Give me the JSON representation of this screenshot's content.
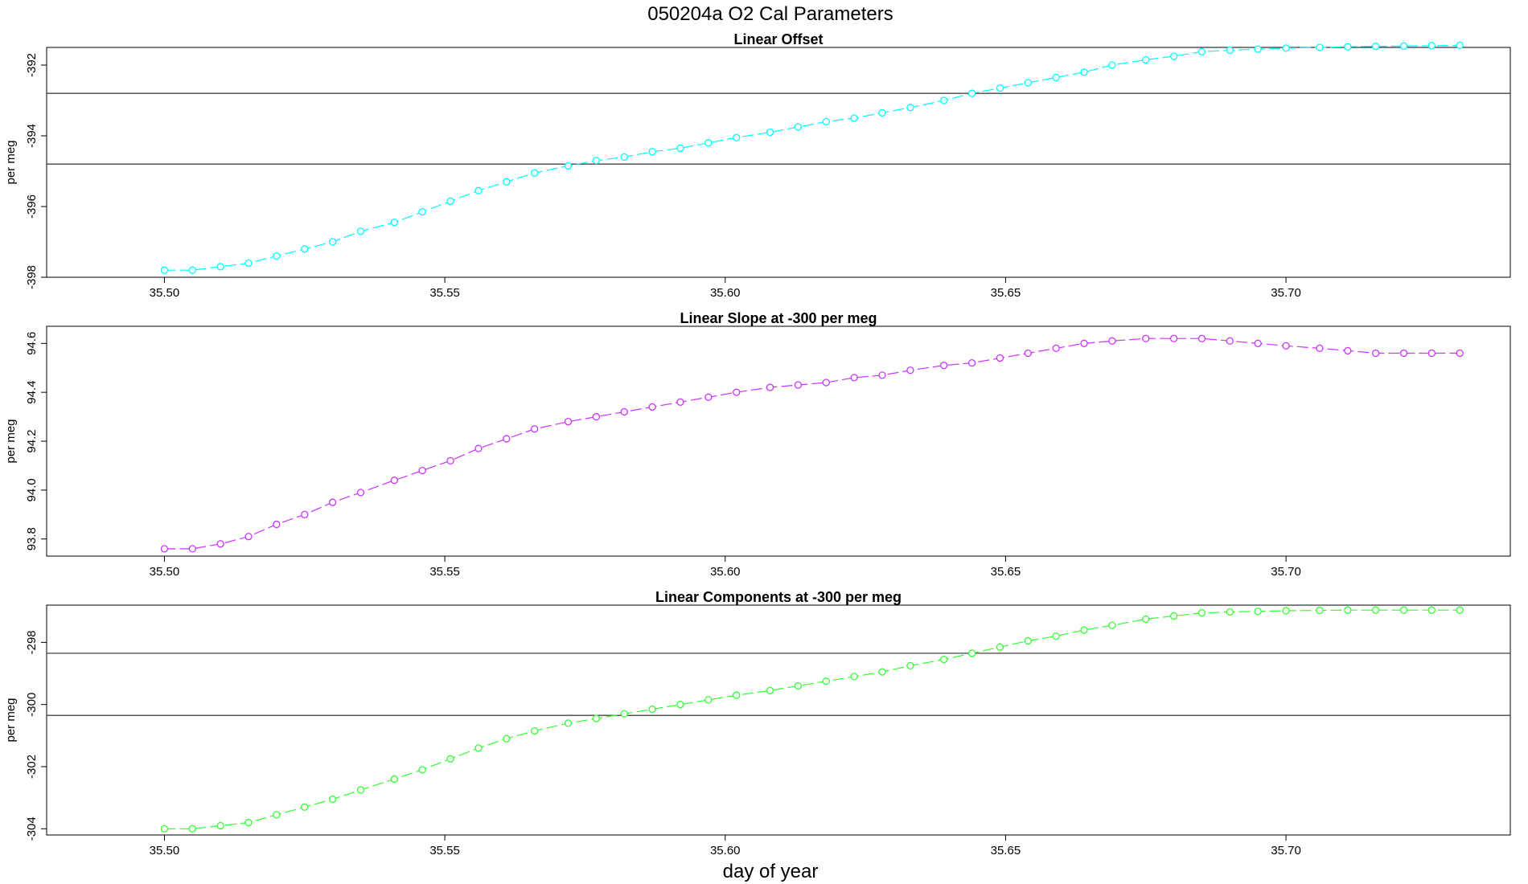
{
  "figure_title": "050204a   O2 Cal Parameters",
  "xlabel": "day of year",
  "chart_data": [
    {
      "type": "line",
      "title": "Linear Offset",
      "ylabel": "per meg",
      "color": "#00ffff",
      "xlim": [
        35.479,
        35.74
      ],
      "ylim": [
        -398,
        -391.5
      ],
      "xticks": [
        "35.50",
        "35.55",
        "35.60",
        "35.65",
        "35.70"
      ],
      "yticks": [
        "-398",
        "-396",
        "-394",
        "-392"
      ],
      "hlines": [
        -392.8,
        -394.8
      ],
      "x": [
        35.5,
        35.505,
        35.51,
        35.515,
        35.52,
        35.525,
        35.53,
        35.535,
        35.541,
        35.546,
        35.551,
        35.556,
        35.561,
        35.566,
        35.572,
        35.577,
        35.582,
        35.587,
        35.592,
        35.597,
        35.602,
        35.608,
        35.613,
        35.618,
        35.623,
        35.628,
        35.633,
        35.639,
        35.644,
        35.649,
        35.654,
        35.659,
        35.664,
        35.669,
        35.675,
        35.68,
        35.685,
        35.69,
        35.695,
        35.7,
        35.706,
        35.711,
        35.716,
        35.721,
        35.726,
        35.731
      ],
      "y": [
        -397.8,
        -397.8,
        -397.7,
        -397.6,
        -397.4,
        -397.2,
        -397.0,
        -396.7,
        -396.45,
        -396.15,
        -395.85,
        -395.55,
        -395.3,
        -395.05,
        -394.85,
        -394.7,
        -394.6,
        -394.45,
        -394.35,
        -394.2,
        -394.05,
        -393.9,
        -393.75,
        -393.6,
        -393.5,
        -393.35,
        -393.2,
        -393.0,
        -392.8,
        -392.65,
        -392.5,
        -392.35,
        -392.2,
        -392.0,
        -391.85,
        -391.75,
        -391.62,
        -391.58,
        -391.55,
        -391.52,
        -391.5,
        -391.48,
        -391.47,
        -391.46,
        -391.45,
        -391.44
      ]
    },
    {
      "type": "line",
      "title": "Linear Slope at -300 per meg",
      "ylabel": "per meg",
      "color": "#cc33ff",
      "xlim": [
        35.479,
        35.74
      ],
      "ylim": [
        93.73,
        94.67
      ],
      "xticks": [
        "35.50",
        "35.55",
        "35.60",
        "35.65",
        "35.70"
      ],
      "yticks": [
        "93.8",
        "94.0",
        "94.2",
        "94.4",
        "94.6"
      ],
      "hlines": [],
      "x": [
        35.5,
        35.505,
        35.51,
        35.515,
        35.52,
        35.525,
        35.53,
        35.535,
        35.541,
        35.546,
        35.551,
        35.556,
        35.561,
        35.566,
        35.572,
        35.577,
        35.582,
        35.587,
        35.592,
        35.597,
        35.602,
        35.608,
        35.613,
        35.618,
        35.623,
        35.628,
        35.633,
        35.639,
        35.644,
        35.649,
        35.654,
        35.659,
        35.664,
        35.669,
        35.675,
        35.68,
        35.685,
        35.69,
        35.695,
        35.7,
        35.706,
        35.711,
        35.716,
        35.721,
        35.726,
        35.731
      ],
      "y": [
        93.76,
        93.76,
        93.78,
        93.81,
        93.86,
        93.9,
        93.95,
        93.99,
        94.04,
        94.08,
        94.12,
        94.17,
        94.21,
        94.25,
        94.28,
        94.3,
        94.32,
        94.34,
        94.36,
        94.38,
        94.4,
        94.42,
        94.43,
        94.44,
        94.46,
        94.47,
        94.49,
        94.51,
        94.52,
        94.54,
        94.56,
        94.58,
        94.6,
        94.61,
        94.62,
        94.62,
        94.62,
        94.61,
        94.6,
        94.59,
        94.58,
        94.57,
        94.56,
        94.56,
        94.56,
        94.56
      ]
    },
    {
      "type": "line",
      "title": "Linear Components at -300 per meg",
      "ylabel": "per meg",
      "color": "#33ff33",
      "xlim": [
        35.479,
        35.74
      ],
      "ylim": [
        -304.2,
        -296.8
      ],
      "xticks": [
        "35.50",
        "35.55",
        "35.60",
        "35.65",
        "35.70"
      ],
      "yticks": [
        "-304",
        "-302",
        "-300",
        "-298"
      ],
      "hlines": [
        -298.35,
        -300.35
      ],
      "x": [
        35.5,
        35.505,
        35.51,
        35.515,
        35.52,
        35.525,
        35.53,
        35.535,
        35.541,
        35.546,
        35.551,
        35.556,
        35.561,
        35.566,
        35.572,
        35.577,
        35.582,
        35.587,
        35.592,
        35.597,
        35.602,
        35.608,
        35.613,
        35.618,
        35.623,
        35.628,
        35.633,
        35.639,
        35.644,
        35.649,
        35.654,
        35.659,
        35.664,
        35.669,
        35.675,
        35.68,
        35.685,
        35.69,
        35.695,
        35.7,
        35.706,
        35.711,
        35.716,
        35.721,
        35.726,
        35.731
      ],
      "y": [
        -304.0,
        -304.0,
        -303.9,
        -303.8,
        -303.55,
        -303.3,
        -303.05,
        -302.75,
        -302.4,
        -302.1,
        -301.75,
        -301.4,
        -301.1,
        -300.85,
        -300.6,
        -300.45,
        -300.3,
        -300.15,
        -300.0,
        -299.85,
        -299.7,
        -299.55,
        -299.4,
        -299.25,
        -299.1,
        -298.95,
        -298.75,
        -298.55,
        -298.35,
        -298.15,
        -297.95,
        -297.8,
        -297.6,
        -297.45,
        -297.25,
        -297.15,
        -297.05,
        -297.02,
        -297.0,
        -296.98,
        -296.97,
        -296.96,
        -296.96,
        -296.96,
        -296.96,
        -296.96
      ]
    }
  ]
}
